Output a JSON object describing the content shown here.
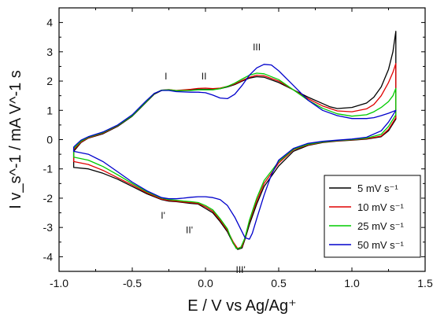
{
  "chart_data": {
    "type": "line",
    "title": "",
    "xlabel": "E / V vs Ag/Ag⁺",
    "ylabel": "I v_s^-1 / mA V^-1 s",
    "xlim": [
      -1.0,
      1.5
    ],
    "ylim": [
      -4.5,
      4.5
    ],
    "xticks": [
      -1.0,
      -0.5,
      0.0,
      0.5,
      1.0,
      1.5
    ],
    "xtick_labels": [
      "-1.0",
      "-0.5",
      "0.0",
      "0.5",
      "1.0",
      "1.5"
    ],
    "yticks": [
      -4,
      -3,
      -2,
      -1,
      0,
      1,
      2,
      3,
      4
    ],
    "ytick_labels": [
      "-4",
      "-3",
      "-2",
      "-1",
      "0",
      "1",
      "2",
      "3",
      "4"
    ],
    "grid": false,
    "legend_position": "bottom-right",
    "annotations": [
      {
        "text": "I",
        "x": -0.27,
        "y": 2.05
      },
      {
        "text": "II",
        "x": -0.01,
        "y": 2.05
      },
      {
        "text": "III",
        "x": 0.35,
        "y": 3.05
      },
      {
        "text": "I'",
        "x": -0.29,
        "y": -2.7
      },
      {
        "text": "II'",
        "x": -0.11,
        "y": -3.2
      },
      {
        "text": "III'",
        "x": 0.24,
        "y": -4.55
      }
    ],
    "series": [
      {
        "name": "5 mV s⁻¹",
        "color": "#000000",
        "points": [
          [
            -0.9,
            -0.4
          ],
          [
            -0.85,
            -0.1
          ],
          [
            -0.8,
            0.05
          ],
          [
            -0.7,
            0.2
          ],
          [
            -0.6,
            0.45
          ],
          [
            -0.5,
            0.8
          ],
          [
            -0.45,
            1.05
          ],
          [
            -0.4,
            1.3
          ],
          [
            -0.35,
            1.55
          ],
          [
            -0.3,
            1.68
          ],
          [
            -0.25,
            1.7
          ],
          [
            -0.2,
            1.67
          ],
          [
            -0.1,
            1.7
          ],
          [
            -0.05,
            1.72
          ],
          [
            0.0,
            1.72
          ],
          [
            0.05,
            1.72
          ],
          [
            0.1,
            1.74
          ],
          [
            0.15,
            1.8
          ],
          [
            0.2,
            1.88
          ],
          [
            0.25,
            2.0
          ],
          [
            0.3,
            2.1
          ],
          [
            0.35,
            2.15
          ],
          [
            0.4,
            2.13
          ],
          [
            0.5,
            1.95
          ],
          [
            0.6,
            1.7
          ],
          [
            0.7,
            1.45
          ],
          [
            0.8,
            1.23
          ],
          [
            0.85,
            1.12
          ],
          [
            0.9,
            1.06
          ],
          [
            1.0,
            1.1
          ],
          [
            1.1,
            1.25
          ],
          [
            1.15,
            1.45
          ],
          [
            1.2,
            1.8
          ],
          [
            1.25,
            2.4
          ],
          [
            1.28,
            3.0
          ],
          [
            1.3,
            3.7
          ],
          [
            1.3,
            0.7
          ],
          [
            1.25,
            0.3
          ],
          [
            1.2,
            0.1
          ],
          [
            1.1,
            0.02
          ],
          [
            1.0,
            -0.02
          ],
          [
            0.9,
            -0.05
          ],
          [
            0.8,
            -0.1
          ],
          [
            0.7,
            -0.2
          ],
          [
            0.6,
            -0.4
          ],
          [
            0.5,
            -0.9
          ],
          [
            0.4,
            -1.6
          ],
          [
            0.35,
            -2.2
          ],
          [
            0.3,
            -2.9
          ],
          [
            0.27,
            -3.4
          ],
          [
            0.25,
            -3.7
          ],
          [
            0.22,
            -3.75
          ],
          [
            0.19,
            -3.55
          ],
          [
            0.15,
            -3.15
          ],
          [
            0.1,
            -2.8
          ],
          [
            0.05,
            -2.5
          ],
          [
            0.0,
            -2.35
          ],
          [
            -0.05,
            -2.2
          ],
          [
            -0.1,
            -2.18
          ],
          [
            -0.15,
            -2.15
          ],
          [
            -0.2,
            -2.12
          ],
          [
            -0.25,
            -2.1
          ],
          [
            -0.3,
            -2.05
          ],
          [
            -0.4,
            -1.85
          ],
          [
            -0.5,
            -1.6
          ],
          [
            -0.6,
            -1.35
          ],
          [
            -0.7,
            -1.15
          ],
          [
            -0.8,
            -1.0
          ],
          [
            -0.9,
            -0.95
          ],
          [
            -0.9,
            -0.4
          ]
        ]
      },
      {
        "name": "10 mV s⁻¹",
        "color": "#e00000",
        "points": [
          [
            -0.9,
            -0.35
          ],
          [
            -0.85,
            -0.08
          ],
          [
            -0.8,
            0.06
          ],
          [
            -0.7,
            0.22
          ],
          [
            -0.6,
            0.47
          ],
          [
            -0.5,
            0.82
          ],
          [
            -0.45,
            1.07
          ],
          [
            -0.4,
            1.32
          ],
          [
            -0.35,
            1.57
          ],
          [
            -0.3,
            1.69
          ],
          [
            -0.25,
            1.71
          ],
          [
            -0.2,
            1.68
          ],
          [
            -0.1,
            1.72
          ],
          [
            -0.05,
            1.75
          ],
          [
            0.0,
            1.76
          ],
          [
            0.05,
            1.74
          ],
          [
            0.1,
            1.76
          ],
          [
            0.15,
            1.82
          ],
          [
            0.2,
            1.9
          ],
          [
            0.25,
            2.02
          ],
          [
            0.3,
            2.13
          ],
          [
            0.35,
            2.2
          ],
          [
            0.4,
            2.18
          ],
          [
            0.5,
            2.0
          ],
          [
            0.6,
            1.7
          ],
          [
            0.7,
            1.4
          ],
          [
            0.8,
            1.15
          ],
          [
            0.9,
            0.98
          ],
          [
            1.0,
            0.95
          ],
          [
            1.1,
            1.05
          ],
          [
            1.15,
            1.2
          ],
          [
            1.2,
            1.5
          ],
          [
            1.25,
            1.95
          ],
          [
            1.28,
            2.3
          ],
          [
            1.3,
            2.6
          ],
          [
            1.3,
            0.75
          ],
          [
            1.25,
            0.35
          ],
          [
            1.2,
            0.12
          ],
          [
            1.1,
            0.03
          ],
          [
            1.0,
            -0.01
          ],
          [
            0.9,
            -0.04
          ],
          [
            0.8,
            -0.09
          ],
          [
            0.7,
            -0.18
          ],
          [
            0.6,
            -0.35
          ],
          [
            0.5,
            -0.8
          ],
          [
            0.4,
            -1.5
          ],
          [
            0.35,
            -2.1
          ],
          [
            0.3,
            -2.8
          ],
          [
            0.27,
            -3.35
          ],
          [
            0.25,
            -3.65
          ],
          [
            0.22,
            -3.72
          ],
          [
            0.19,
            -3.5
          ],
          [
            0.15,
            -3.1
          ],
          [
            0.1,
            -2.75
          ],
          [
            0.05,
            -2.45
          ],
          [
            0.0,
            -2.3
          ],
          [
            -0.05,
            -2.18
          ],
          [
            -0.1,
            -2.15
          ],
          [
            -0.15,
            -2.13
          ],
          [
            -0.2,
            -2.1
          ],
          [
            -0.25,
            -2.08
          ],
          [
            -0.3,
            -2.03
          ],
          [
            -0.4,
            -1.82
          ],
          [
            -0.5,
            -1.55
          ],
          [
            -0.6,
            -1.3
          ],
          [
            -0.7,
            -1.05
          ],
          [
            -0.8,
            -0.85
          ],
          [
            -0.9,
            -0.75
          ],
          [
            -0.9,
            -0.35
          ]
        ]
      },
      {
        "name": "25 mV s⁻¹",
        "color": "#00cc00",
        "points": [
          [
            -0.9,
            -0.3
          ],
          [
            -0.85,
            -0.05
          ],
          [
            -0.8,
            0.08
          ],
          [
            -0.7,
            0.24
          ],
          [
            -0.6,
            0.48
          ],
          [
            -0.5,
            0.82
          ],
          [
            -0.45,
            1.07
          ],
          [
            -0.4,
            1.32
          ],
          [
            -0.35,
            1.57
          ],
          [
            -0.3,
            1.69
          ],
          [
            -0.25,
            1.7
          ],
          [
            -0.2,
            1.67
          ],
          [
            -0.1,
            1.68
          ],
          [
            -0.05,
            1.7
          ],
          [
            0.0,
            1.7
          ],
          [
            0.05,
            1.7
          ],
          [
            0.1,
            1.74
          ],
          [
            0.15,
            1.82
          ],
          [
            0.2,
            1.93
          ],
          [
            0.25,
            2.07
          ],
          [
            0.3,
            2.2
          ],
          [
            0.35,
            2.27
          ],
          [
            0.4,
            2.25
          ],
          [
            0.5,
            2.05
          ],
          [
            0.6,
            1.7
          ],
          [
            0.7,
            1.35
          ],
          [
            0.8,
            1.07
          ],
          [
            0.9,
            0.88
          ],
          [
            1.0,
            0.8
          ],
          [
            1.1,
            0.85
          ],
          [
            1.15,
            0.95
          ],
          [
            1.2,
            1.1
          ],
          [
            1.25,
            1.3
          ],
          [
            1.28,
            1.5
          ],
          [
            1.3,
            1.75
          ],
          [
            1.3,
            0.85
          ],
          [
            1.25,
            0.45
          ],
          [
            1.2,
            0.18
          ],
          [
            1.1,
            0.05
          ],
          [
            1.0,
            0.0
          ],
          [
            0.9,
            -0.03
          ],
          [
            0.8,
            -0.08
          ],
          [
            0.7,
            -0.16
          ],
          [
            0.6,
            -0.33
          ],
          [
            0.5,
            -0.75
          ],
          [
            0.4,
            -1.4
          ],
          [
            0.35,
            -2.0
          ],
          [
            0.3,
            -2.75
          ],
          [
            0.27,
            -3.35
          ],
          [
            0.24,
            -3.7
          ],
          [
            0.21,
            -3.72
          ],
          [
            0.18,
            -3.45
          ],
          [
            0.15,
            -3.05
          ],
          [
            0.1,
            -2.7
          ],
          [
            0.05,
            -2.4
          ],
          [
            0.0,
            -2.25
          ],
          [
            -0.05,
            -2.15
          ],
          [
            -0.1,
            -2.12
          ],
          [
            -0.15,
            -2.1
          ],
          [
            -0.2,
            -2.07
          ],
          [
            -0.25,
            -2.05
          ],
          [
            -0.3,
            -2.0
          ],
          [
            -0.4,
            -1.78
          ],
          [
            -0.5,
            -1.5
          ],
          [
            -0.6,
            -1.2
          ],
          [
            -0.7,
            -0.92
          ],
          [
            -0.8,
            -0.7
          ],
          [
            -0.9,
            -0.6
          ],
          [
            -0.9,
            -0.3
          ]
        ]
      },
      {
        "name": "50 mV s⁻¹",
        "color": "#0000cc",
        "points": [
          [
            -0.9,
            -0.25
          ],
          [
            -0.85,
            -0.02
          ],
          [
            -0.8,
            0.1
          ],
          [
            -0.7,
            0.26
          ],
          [
            -0.6,
            0.5
          ],
          [
            -0.5,
            0.85
          ],
          [
            -0.45,
            1.1
          ],
          [
            -0.4,
            1.35
          ],
          [
            -0.35,
            1.58
          ],
          [
            -0.3,
            1.68
          ],
          [
            -0.25,
            1.68
          ],
          [
            -0.2,
            1.64
          ],
          [
            -0.1,
            1.62
          ],
          [
            -0.05,
            1.62
          ],
          [
            0.0,
            1.6
          ],
          [
            0.05,
            1.52
          ],
          [
            0.1,
            1.42
          ],
          [
            0.15,
            1.4
          ],
          [
            0.2,
            1.55
          ],
          [
            0.25,
            1.85
          ],
          [
            0.3,
            2.2
          ],
          [
            0.35,
            2.45
          ],
          [
            0.4,
            2.57
          ],
          [
            0.45,
            2.55
          ],
          [
            0.5,
            2.35
          ],
          [
            0.6,
            1.85
          ],
          [
            0.7,
            1.35
          ],
          [
            0.8,
            1.0
          ],
          [
            0.9,
            0.82
          ],
          [
            1.0,
            0.72
          ],
          [
            1.1,
            0.72
          ],
          [
            1.15,
            0.75
          ],
          [
            1.2,
            0.82
          ],
          [
            1.25,
            0.9
          ],
          [
            1.3,
            1.0
          ],
          [
            1.3,
            1.0
          ],
          [
            1.25,
            0.6
          ],
          [
            1.2,
            0.3
          ],
          [
            1.1,
            0.08
          ],
          [
            1.0,
            0.02
          ],
          [
            0.9,
            -0.02
          ],
          [
            0.8,
            -0.06
          ],
          [
            0.7,
            -0.13
          ],
          [
            0.6,
            -0.3
          ],
          [
            0.5,
            -0.7
          ],
          [
            0.45,
            -1.2
          ],
          [
            0.4,
            -1.9
          ],
          [
            0.35,
            -2.7
          ],
          [
            0.32,
            -3.2
          ],
          [
            0.3,
            -3.4
          ],
          [
            0.27,
            -3.35
          ],
          [
            0.25,
            -3.15
          ],
          [
            0.2,
            -2.65
          ],
          [
            0.15,
            -2.25
          ],
          [
            0.1,
            -2.05
          ],
          [
            0.05,
            -1.98
          ],
          [
            0.0,
            -1.95
          ],
          [
            -0.05,
            -1.95
          ],
          [
            -0.1,
            -1.97
          ],
          [
            -0.15,
            -2.0
          ],
          [
            -0.2,
            -2.02
          ],
          [
            -0.25,
            -2.02
          ],
          [
            -0.3,
            -1.98
          ],
          [
            -0.4,
            -1.75
          ],
          [
            -0.5,
            -1.45
          ],
          [
            -0.6,
            -1.1
          ],
          [
            -0.7,
            -0.75
          ],
          [
            -0.8,
            -0.5
          ],
          [
            -0.9,
            -0.4
          ],
          [
            -0.9,
            -0.25
          ]
        ]
      }
    ]
  }
}
